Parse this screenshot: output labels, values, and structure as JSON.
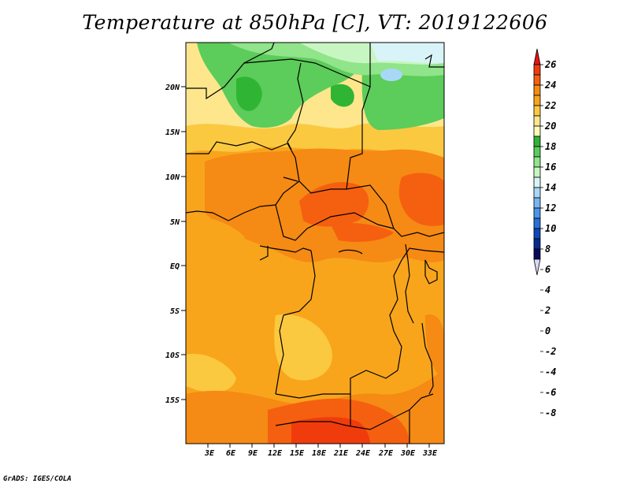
{
  "title": "Temperature at 850hPa [C], VT: 2019122606",
  "credit": "GrADS: IGES/COLA",
  "map": {
    "lat_labels": [
      "20N",
      "15N",
      "10N",
      "5N",
      "EQ",
      "5S",
      "10S",
      "15S"
    ],
    "lon_labels": [
      "3E",
      "6E",
      "9E",
      "12E",
      "15E",
      "18E",
      "21E",
      "24E",
      "27E",
      "30E",
      "33E"
    ]
  },
  "colorbar": {
    "labels": [
      "26",
      "24",
      "22",
      "20",
      "18",
      "16",
      "14",
      "12",
      "10",
      "8",
      "6",
      "4",
      "2",
      "0",
      "-2",
      "-4",
      "-6",
      "-8"
    ],
    "colors": [
      "#e8140f",
      "#f03c0c",
      "#f56010",
      "#f58a14",
      "#f8a51c",
      "#fbc940",
      "#fde68c",
      "#fefbb4",
      "#30b434",
      "#5ccc5a",
      "#90e48a",
      "#c8f6c2",
      "#d8f4f8",
      "#a8d8f6",
      "#78b6f0",
      "#4a96e8",
      "#2870d8",
      "#1048b8",
      "#0a2a8e",
      "#0a0a5a",
      "#d8d8f8"
    ]
  }
}
